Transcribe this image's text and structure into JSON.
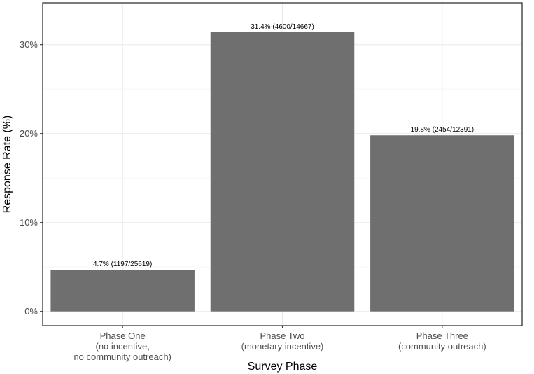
{
  "chart_data": {
    "type": "bar",
    "categories": [
      [
        "Phase One",
        "(no incentive,",
        "no community outreach)"
      ],
      [
        "Phase Two",
        "(monetary incentive)"
      ],
      [
        "Phase Three",
        "(community outreach)"
      ]
    ],
    "values": [
      4.7,
      31.4,
      19.8
    ],
    "data_labels": [
      "4.7% (1197/25619)",
      "31.4% (4600/14667)",
      "19.8% (2454/12391)"
    ],
    "xlabel": "Survey Phase",
    "ylabel": "Response Rate (%)",
    "ylim": [
      -1.6,
      34.7
    ],
    "yticks": [
      0,
      10,
      20,
      30
    ],
    "ytick_labels": [
      "0%",
      "10%",
      "20%",
      "30%"
    ],
    "grid": true,
    "colors": {
      "bar": "#6f6f6f",
      "grid_major": "#ebebeb",
      "grid_minor": "#f5f5f5",
      "panel_border": "#333333"
    }
  }
}
